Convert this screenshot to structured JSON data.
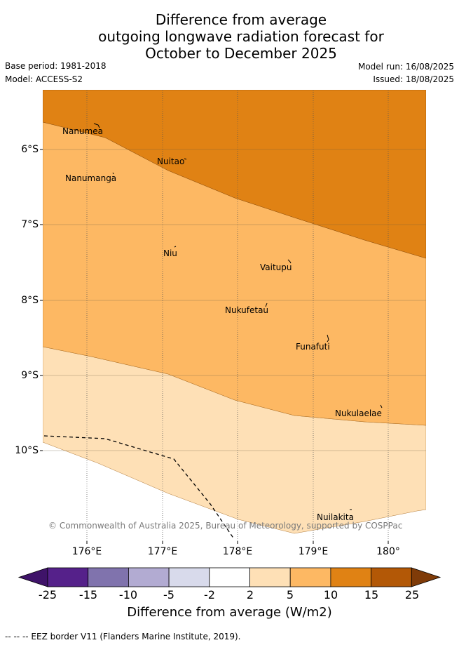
{
  "title": {
    "line1": "Difference from average",
    "line2": "outgoing longwave radiation forecast for",
    "line3": "October to December 2025"
  },
  "meta": {
    "base_period": "Base period: 1981-2018",
    "model": "Model: ACCESS-S2",
    "model_run": "Model run: 16/08/2025",
    "issued": "Issued: 18/08/2025"
  },
  "axes": {
    "y_ticks": [
      "6°S",
      "7°S",
      "8°S",
      "9°S",
      "10°S"
    ],
    "x_ticks": [
      "176°E",
      "177°E",
      "178°E",
      "179°E",
      "180°"
    ]
  },
  "islands": {
    "nanumea": "Nanumea",
    "nuitao": "Nuitao",
    "nanumanga": "Nanumanga",
    "niu": "Niu",
    "vaitupu": "Vaitupu",
    "nukufetau": "Nukufetau",
    "funafuti": "Funafuti",
    "nukulaelae": "Nukulaelae",
    "nuilakita": "Nuilakita"
  },
  "copyright": "© Commonwealth of Australia 2025, Bureau of Meteorology, supported by COSPPac",
  "colorbar": {
    "ticks": [
      "-25",
      "-15",
      "-10",
      "-5",
      "-2",
      "2",
      "5",
      "10",
      "15",
      "25"
    ],
    "colors": [
      "#3f1369",
      "#55218a",
      "#8073ad",
      "#b2abd2",
      "#d8daeb",
      "#ffffff",
      "#fee0b6",
      "#fdb863",
      "#e08214",
      "#b35806",
      "#7f3b08"
    ],
    "title": "Difference from average (W/m2)"
  },
  "legend_note": "--  --  -- EEZ border V11 (Flanders Marine Institute, 2019)."
}
